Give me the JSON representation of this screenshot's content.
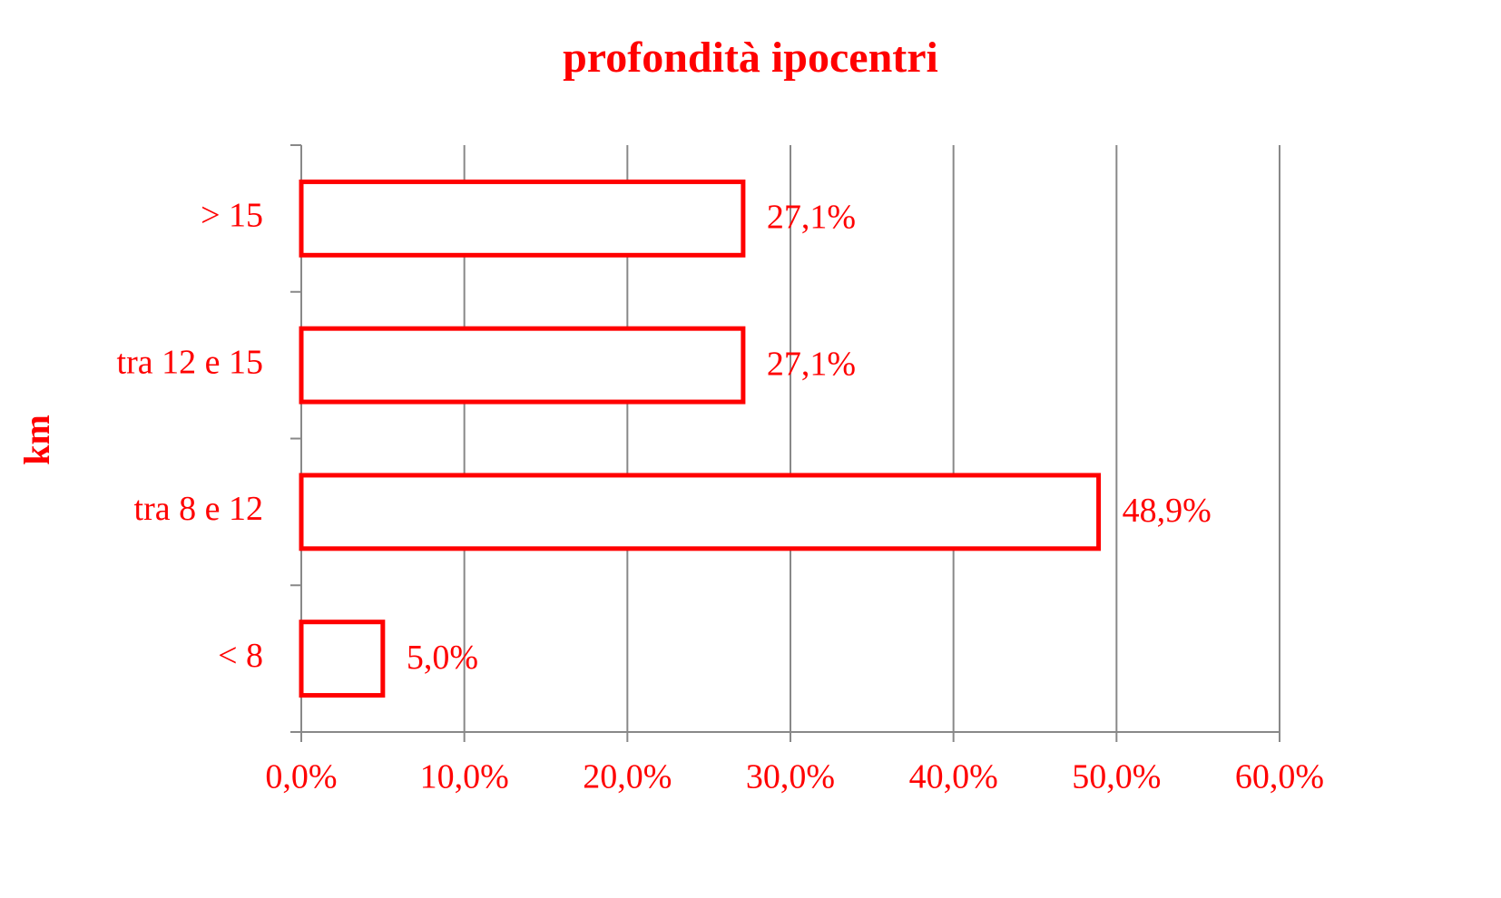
{
  "chart_data": {
    "type": "hbar",
    "title": "profondità ipocentri",
    "y_label": "km",
    "categories": [
      "> 15",
      "tra 12 e 15",
      "tra 8 e 12",
      "< 8"
    ],
    "values": [
      27.1,
      27.1,
      48.9,
      5.0
    ],
    "value_labels": [
      "27,1%",
      "27,1%",
      "48,9%",
      "5,0%"
    ],
    "color": "#ff0000",
    "xlim": [
      0,
      60
    ],
    "xticks": [
      {
        "value": 0,
        "label": "0,0%"
      },
      {
        "value": 10,
        "label": "10,0%"
      },
      {
        "value": 20,
        "label": "20,0%"
      },
      {
        "value": 30,
        "label": "30,0%"
      },
      {
        "value": 40,
        "label": "40,0%"
      },
      {
        "value": 50,
        "label": "50,0%"
      },
      {
        "value": 60,
        "label": "60,0%"
      }
    ],
    "grid": true
  }
}
